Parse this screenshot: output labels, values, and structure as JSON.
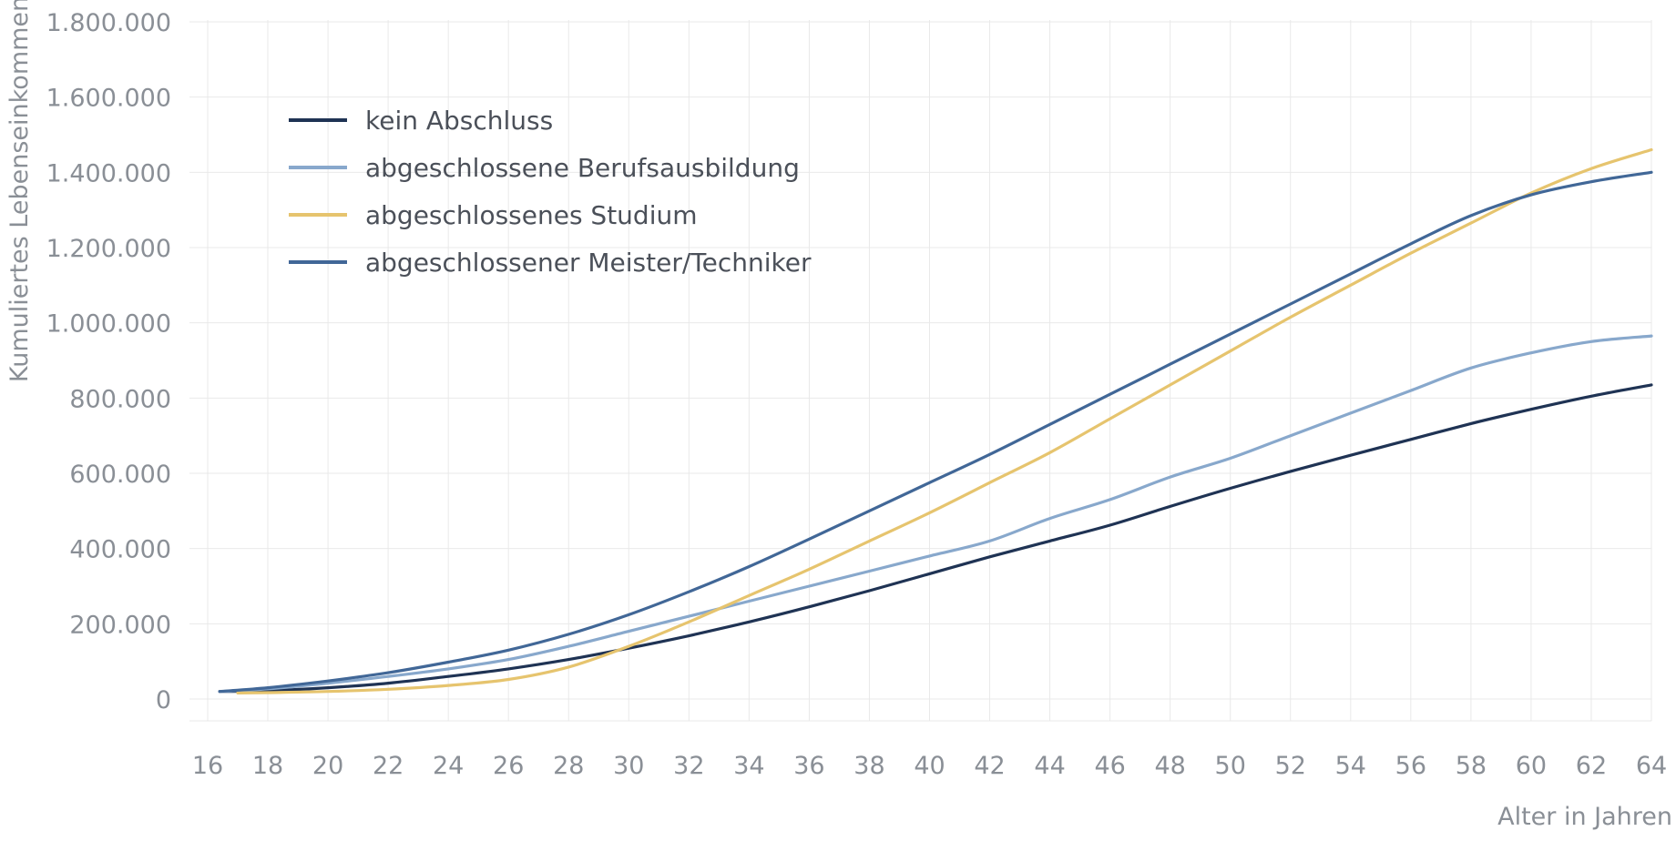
{
  "chart_data": {
    "type": "line",
    "title": "",
    "xlabel": "Alter in Jahren",
    "ylabel": "Kumuliertes Lebenseinkommen",
    "xlim": [
      16,
      64
    ],
    "ylim": [
      0,
      1800000
    ],
    "x_ticks": [
      16,
      18,
      20,
      22,
      24,
      26,
      28,
      30,
      32,
      34,
      36,
      38,
      40,
      42,
      44,
      46,
      48,
      50,
      52,
      54,
      56,
      58,
      60,
      62,
      64
    ],
    "y_ticks": [
      0,
      200000,
      400000,
      600000,
      800000,
      1000000,
      1200000,
      1400000,
      1600000,
      1800000
    ],
    "y_tick_labels": [
      "0",
      "200.000",
      "400.000",
      "600.000",
      "800.000",
      "1.000.000",
      "1.200.000",
      "1.400.000",
      "1.600.000",
      "1.800.000"
    ],
    "grid": true,
    "legend_position": "top-left",
    "series": [
      {
        "name": "kein Abschluss",
        "color": "#1f3354",
        "x": [
          16.4,
          18,
          20,
          22,
          24,
          26,
          28,
          30,
          32,
          34,
          36,
          38,
          40,
          42,
          44,
          46,
          48,
          50,
          52,
          54,
          56,
          58,
          60,
          62,
          64
        ],
        "y": [
          20000,
          22000,
          30000,
          42000,
          60000,
          80000,
          105000,
          135000,
          168000,
          205000,
          245000,
          288000,
          333000,
          378000,
          420000,
          462000,
          512000,
          560000,
          605000,
          648000,
          690000,
          732000,
          770000,
          805000,
          835000
        ]
      },
      {
        "name": "abgeschlossene Berufsausbildung",
        "color": "#88a8cc",
        "x": [
          16.4,
          18,
          20,
          22,
          24,
          26,
          28,
          30,
          32,
          34,
          36,
          38,
          40,
          42,
          44,
          46,
          48,
          50,
          52,
          54,
          56,
          58,
          60,
          62,
          64
        ],
        "y": [
          20000,
          27000,
          42000,
          60000,
          80000,
          105000,
          140000,
          180000,
          220000,
          260000,
          300000,
          340000,
          380000,
          420000,
          480000,
          530000,
          590000,
          640000,
          700000,
          760000,
          820000,
          880000,
          920000,
          950000,
          965000
        ]
      },
      {
        "name": "abgeschlossenes Studium",
        "color": "#e6c46e",
        "x": [
          17,
          18,
          20,
          22,
          24,
          26,
          28,
          30,
          32,
          34,
          36,
          38,
          40,
          42,
          44,
          46,
          48,
          50,
          52,
          54,
          56,
          58,
          60,
          62,
          64
        ],
        "y": [
          16000,
          17000,
          20000,
          26000,
          36000,
          52000,
          85000,
          140000,
          205000,
          275000,
          345000,
          420000,
          495000,
          575000,
          655000,
          745000,
          835000,
          925000,
          1015000,
          1100000,
          1185000,
          1265000,
          1345000,
          1410000,
          1460000
        ]
      },
      {
        "name": "abgeschlossener Meister/Techniker",
        "color": "#416797",
        "x": [
          16.4,
          18,
          20,
          22,
          24,
          26,
          28,
          30,
          32,
          34,
          36,
          38,
          40,
          42,
          44,
          46,
          48,
          50,
          52,
          54,
          56,
          58,
          60,
          62,
          64
        ],
        "y": [
          20000,
          30000,
          48000,
          70000,
          98000,
          130000,
          172000,
          224000,
          285000,
          352000,
          425000,
          500000,
          575000,
          650000,
          730000,
          810000,
          890000,
          970000,
          1050000,
          1130000,
          1210000,
          1285000,
          1340000,
          1375000,
          1400000
        ]
      }
    ]
  }
}
